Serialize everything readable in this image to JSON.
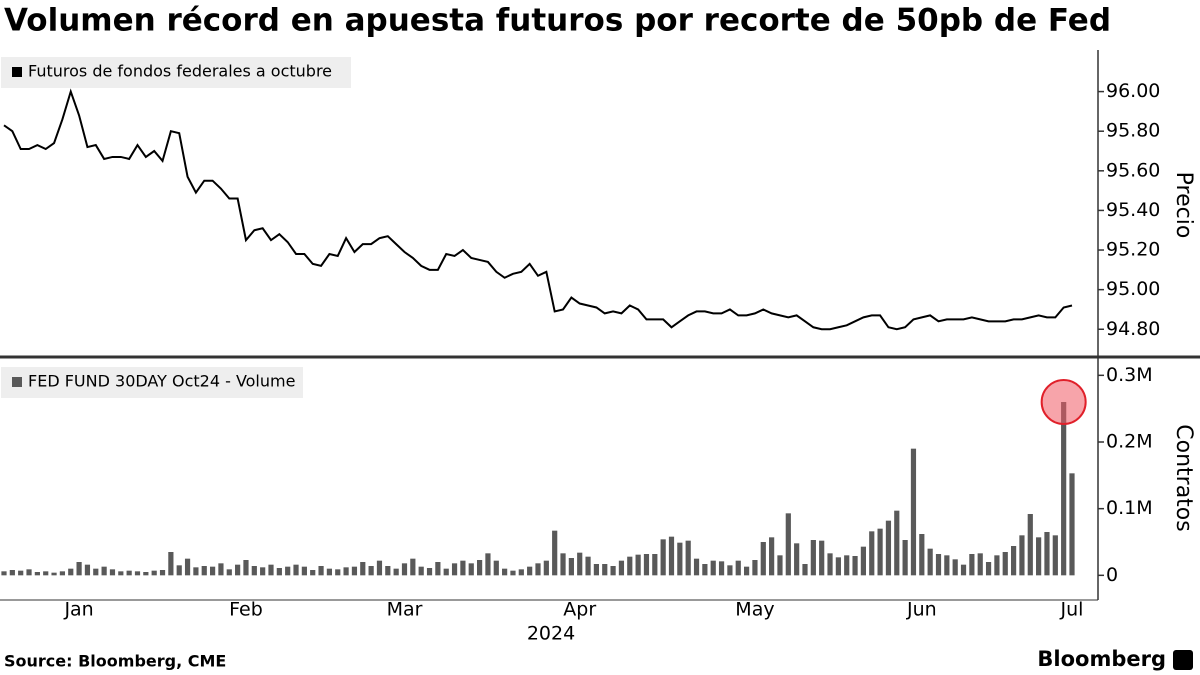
{
  "title": "Volumen récord en apuesta futuros por recorte de 50pb de Fed",
  "source": "Source: Bloomberg, CME",
  "logo": "Bloomberg",
  "chart_data": [
    {
      "type": "line",
      "y_label": "Precio",
      "series": [
        {
          "name": "Futuros de fondos federales a octubre",
          "color": "#000000",
          "values": [
            95.83,
            95.8,
            95.71,
            95.71,
            95.73,
            95.71,
            95.74,
            95.86,
            96.0,
            95.88,
            95.72,
            95.73,
            95.66,
            95.67,
            95.67,
            95.66,
            95.73,
            95.67,
            95.7,
            95.65,
            95.8,
            95.79,
            95.57,
            95.49,
            95.55,
            95.55,
            95.51,
            95.46,
            95.46,
            95.25,
            95.3,
            95.31,
            95.25,
            95.28,
            95.24,
            95.18,
            95.18,
            95.13,
            95.12,
            95.18,
            95.17,
            95.26,
            95.19,
            95.23,
            95.23,
            95.26,
            95.27,
            95.23,
            95.19,
            95.16,
            95.12,
            95.1,
            95.1,
            95.18,
            95.17,
            95.2,
            95.16,
            95.15,
            95.14,
            95.09,
            95.06,
            95.08,
            95.09,
            95.13,
            95.07,
            95.09,
            94.89,
            94.9,
            94.96,
            94.93,
            94.92,
            94.91,
            94.88,
            94.89,
            94.88,
            94.92,
            94.9,
            94.85,
            94.85,
            94.85,
            94.81,
            94.84,
            94.87,
            94.89,
            94.89,
            94.88,
            94.88,
            94.9,
            94.87,
            94.87,
            94.88,
            94.9,
            94.88,
            94.87,
            94.86,
            94.87,
            94.84,
            94.81,
            94.8,
            94.8,
            94.81,
            94.82,
            94.84,
            94.86,
            94.87,
            94.87,
            94.81,
            94.8,
            94.81,
            94.85,
            94.86,
            94.87,
            94.84,
            94.85,
            94.85,
            94.85,
            94.86,
            94.85,
            94.84,
            94.84,
            94.84,
            94.85,
            94.85,
            94.86,
            94.87,
            94.86,
            94.86,
            94.91,
            94.92
          ]
        }
      ],
      "ylim": [
        94.67,
        96.21
      ],
      "yticks": [
        {
          "value": 94.8,
          "label": "94.80"
        },
        {
          "value": 95,
          "label": "95.00"
        },
        {
          "value": 95.2,
          "label": "95.20"
        },
        {
          "value": 95.4,
          "label": "95.40"
        },
        {
          "value": 95.6,
          "label": "95.60"
        },
        {
          "value": 95.8,
          "label": "95.80"
        },
        {
          "value": 96,
          "label": "96.00"
        }
      ]
    },
    {
      "type": "bar",
      "y_label": "Contratos",
      "x_label": "2024",
      "categories": [
        null,
        null,
        null,
        null,
        null,
        null,
        null,
        null,
        null,
        "Jan",
        null,
        null,
        null,
        null,
        null,
        null,
        null,
        null,
        null,
        null,
        null,
        null,
        null,
        null,
        null,
        null,
        null,
        null,
        null,
        "Feb",
        null,
        null,
        null,
        null,
        null,
        null,
        null,
        null,
        null,
        null,
        null,
        null,
        null,
        null,
        null,
        null,
        null,
        null,
        "Mar",
        null,
        null,
        null,
        null,
        null,
        null,
        null,
        null,
        null,
        null,
        null,
        null,
        null,
        null,
        null,
        null,
        null,
        null,
        null,
        null,
        "Apr",
        null,
        null,
        null,
        null,
        null,
        null,
        null,
        null,
        null,
        null,
        null,
        null,
        null,
        null,
        null,
        null,
        null,
        null,
        null,
        null,
        "May",
        null,
        null,
        null,
        null,
        null,
        null,
        null,
        null,
        null,
        null,
        null,
        null,
        null,
        null,
        null,
        null,
        null,
        null,
        null,
        "Jun",
        null,
        null,
        null,
        null,
        null,
        null,
        null,
        null,
        null,
        null,
        null,
        null,
        null,
        null,
        null,
        null,
        null,
        "Jul"
      ],
      "series": [
        {
          "name": "FED FUND 30DAY Oct24 - Volume",
          "color": "#595959",
          "values": [
            6000,
            8000,
            7000,
            9000,
            5000,
            6000,
            4000,
            6000,
            10000,
            20000,
            16000,
            10000,
            13000,
            9000,
            6000,
            7000,
            6000,
            5000,
            7000,
            8000,
            35000,
            15000,
            25000,
            12000,
            14000,
            13000,
            18000,
            9000,
            16000,
            23000,
            14000,
            12000,
            16000,
            11000,
            13000,
            16000,
            13000,
            8000,
            14000,
            10000,
            9000,
            12000,
            13000,
            20000,
            14000,
            22000,
            14000,
            10000,
            18000,
            25000,
            13000,
            11000,
            20000,
            10000,
            18000,
            22000,
            18000,
            23000,
            33000,
            22000,
            10000,
            7000,
            9000,
            13000,
            18000,
            22000,
            67000,
            33000,
            26000,
            34000,
            28000,
            17000,
            17000,
            14000,
            22000,
            28000,
            31000,
            32000,
            32000,
            54000,
            58000,
            49000,
            52000,
            25000,
            17000,
            22000,
            21000,
            15000,
            22000,
            13000,
            23000,
            50000,
            57000,
            30000,
            93000,
            48000,
            17000,
            53000,
            52000,
            33000,
            27000,
            30000,
            29000,
            43000,
            66000,
            70000,
            82000,
            97000,
            53000,
            190000,
            62000,
            40000,
            32000,
            30000,
            24000,
            16000,
            32000,
            33000,
            20000,
            30000,
            35000,
            44000,
            60000,
            92000,
            57000,
            65000,
            60000,
            260000,
            153000
          ]
        }
      ],
      "ylim": [
        -37000,
        320000
      ],
      "yticks": [
        0,
        {
          "value": 100000,
          "label": "0.1M"
        },
        {
          "value": 200000,
          "label": "0.2M"
        },
        {
          "value": 300000,
          "label": "0.3M"
        }
      ]
    }
  ]
}
